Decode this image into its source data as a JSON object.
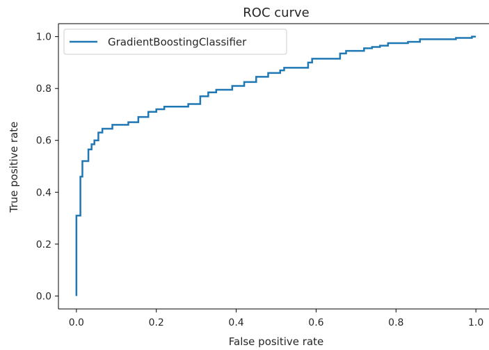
{
  "chart_data": {
    "type": "line",
    "title": "ROC curve",
    "xlabel": "False positive rate",
    "ylabel": "True positive rate",
    "xlim": [
      -0.045,
      1.045
    ],
    "ylim": [
      -0.05,
      1.05
    ],
    "x_ticks": [
      0.0,
      0.2,
      0.4,
      0.6,
      0.8,
      1.0
    ],
    "y_ticks": [
      0.0,
      0.2,
      0.4,
      0.6,
      0.8,
      1.0
    ],
    "x_tick_labels": [
      "0.0",
      "0.2",
      "0.4",
      "0.6",
      "0.8",
      "1.0"
    ],
    "y_tick_labels": [
      "0.0",
      "0.2",
      "0.4",
      "0.6",
      "0.8",
      "1.0"
    ],
    "grid": false,
    "legend_position": "top-left",
    "series": [
      {
        "name": "GradientBoostingClassifier",
        "color": "#1f77b4",
        "step": true,
        "x": [
          0.0,
          0.0,
          0.01,
          0.01,
          0.015,
          0.015,
          0.03,
          0.03,
          0.038,
          0.038,
          0.045,
          0.045,
          0.055,
          0.055,
          0.065,
          0.065,
          0.09,
          0.09,
          0.13,
          0.13,
          0.155,
          0.155,
          0.18,
          0.18,
          0.2,
          0.2,
          0.22,
          0.22,
          0.28,
          0.28,
          0.31,
          0.31,
          0.33,
          0.33,
          0.35,
          0.35,
          0.39,
          0.39,
          0.42,
          0.42,
          0.45,
          0.45,
          0.48,
          0.48,
          0.51,
          0.51,
          0.52,
          0.52,
          0.58,
          0.58,
          0.59,
          0.59,
          0.66,
          0.66,
          0.675,
          0.675,
          0.72,
          0.72,
          0.74,
          0.74,
          0.76,
          0.76,
          0.78,
          0.78,
          0.83,
          0.83,
          0.86,
          0.86,
          0.95,
          0.95,
          0.99,
          0.99,
          1.0
        ],
        "y": [
          0.0,
          0.31,
          0.31,
          0.46,
          0.46,
          0.52,
          0.52,
          0.565,
          0.565,
          0.585,
          0.585,
          0.6,
          0.6,
          0.63,
          0.63,
          0.645,
          0.645,
          0.66,
          0.66,
          0.67,
          0.67,
          0.69,
          0.69,
          0.71,
          0.71,
          0.72,
          0.72,
          0.73,
          0.73,
          0.74,
          0.74,
          0.77,
          0.77,
          0.785,
          0.785,
          0.795,
          0.795,
          0.81,
          0.81,
          0.825,
          0.825,
          0.845,
          0.845,
          0.86,
          0.86,
          0.87,
          0.87,
          0.88,
          0.88,
          0.9,
          0.9,
          0.915,
          0.915,
          0.935,
          0.935,
          0.945,
          0.945,
          0.955,
          0.955,
          0.96,
          0.96,
          0.965,
          0.965,
          0.975,
          0.975,
          0.98,
          0.98,
          0.99,
          0.99,
          0.995,
          0.995,
          1.0,
          1.0
        ]
      }
    ]
  }
}
